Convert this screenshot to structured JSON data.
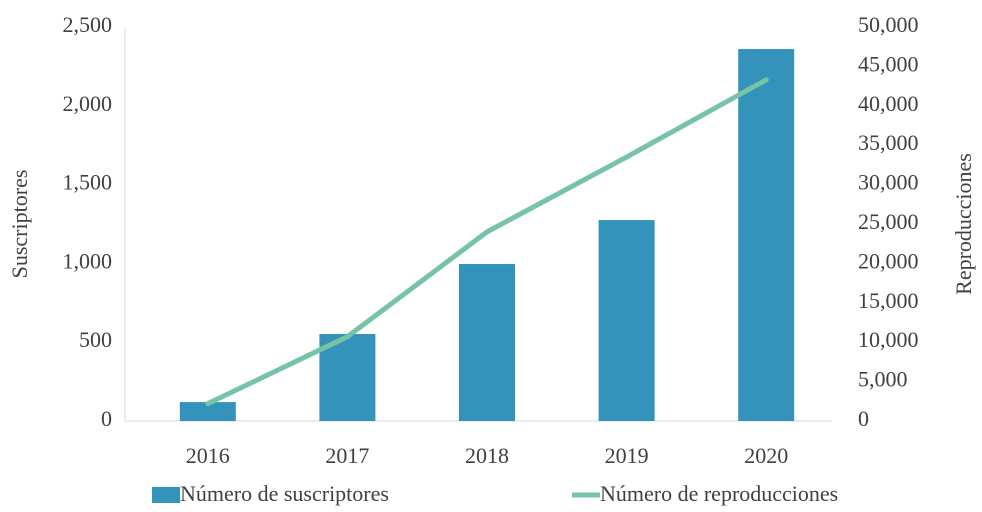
{
  "chart_data": {
    "type": "bar_line",
    "categories": [
      "2016",
      "2017",
      "2018",
      "2019",
      "2020"
    ],
    "series": [
      {
        "name": "Número de suscriptores",
        "type": "bar",
        "color": "#3393bb",
        "values": [
          120,
          552,
          996,
          1275,
          2360
        ]
      },
      {
        "name": "Número de reproducciones",
        "type": "line",
        "color": "#77c3a6",
        "axis": "y2",
        "values": [
          2200,
          10700,
          24000,
          33500,
          43300
        ]
      }
    ],
    "ylabel": "Suscriptores",
    "y2label": "Reproducciones",
    "ylim": [
      0,
      2500
    ],
    "yticks": [
      0,
      500,
      {
        "value": 1000,
        "label": "1,000"
      },
      {
        "value": 1500,
        "label": "1,500"
      },
      {
        "value": 2000,
        "label": "2,000"
      },
      {
        "value": 2500,
        "label": "2,500"
      }
    ],
    "y2lim": [
      0,
      50000
    ],
    "y2ticks": [
      0,
      {
        "value": 5000,
        "label": "5,000"
      },
      {
        "value": 10000,
        "label": "10,000"
      },
      {
        "value": 15000,
        "label": "15,000"
      },
      {
        "value": 20000,
        "label": "20,000"
      },
      {
        "value": 25000,
        "label": "25,000"
      },
      {
        "value": 30000,
        "label": "30,000"
      },
      {
        "value": 35000,
        "label": "35,000"
      },
      {
        "value": 40000,
        "label": "40,000"
      },
      {
        "value": 45000,
        "label": "45,000"
      },
      {
        "value": 50000,
        "label": "50,000"
      }
    ],
    "legend": "bottom"
  }
}
